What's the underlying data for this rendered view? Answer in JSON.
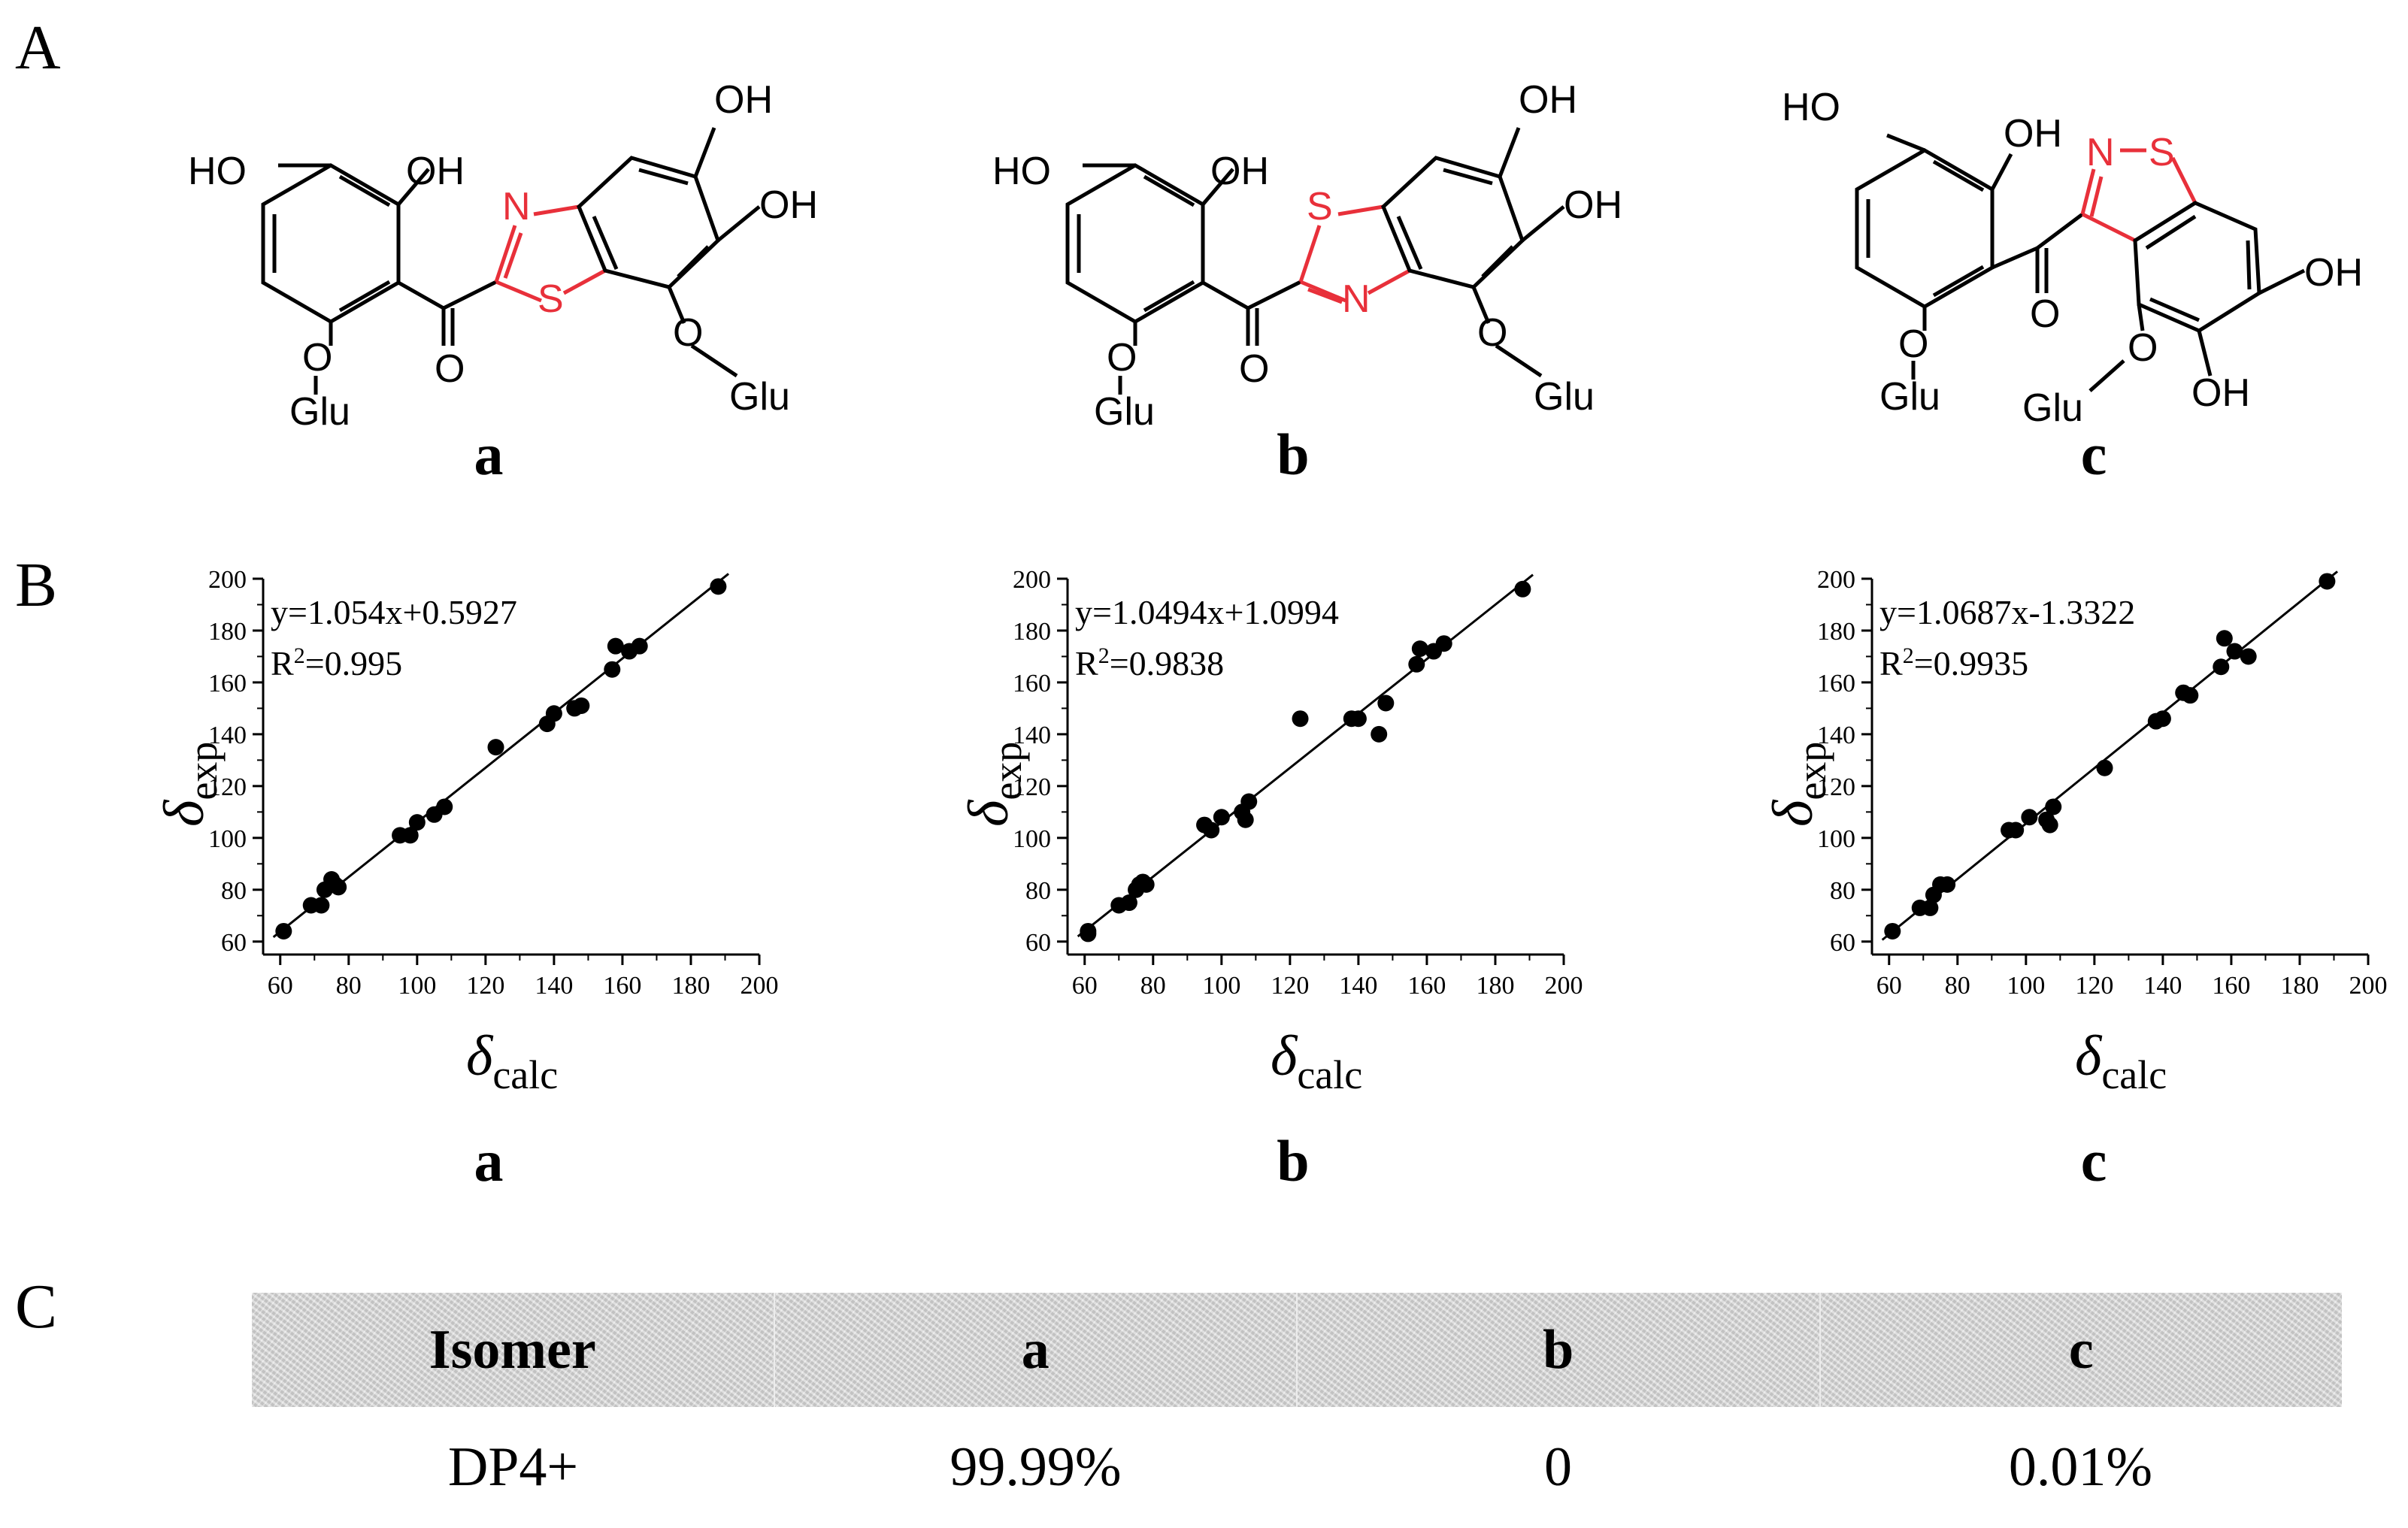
{
  "panel_labels": {
    "A": "A",
    "B": "B",
    "C": "C"
  },
  "structures": [
    {
      "label": "a",
      "atoms": {
        "HO1": "HO",
        "OH1": "OH",
        "OH2": "OH",
        "OH3": "OH",
        "N": "N",
        "S": "S",
        "O": "O",
        "O_glu1": "O",
        "Glu1": "Glu",
        "O_glu2": "O",
        "Glu2": "Glu"
      }
    },
    {
      "label": "b",
      "atoms": {
        "HO1": "HO",
        "OH1": "OH",
        "OH2": "OH",
        "OH3": "OH",
        "N": "N",
        "S": "S",
        "O": "O",
        "O_glu1": "O",
        "Glu1": "Glu",
        "O_glu2": "O",
        "Glu2": "Glu"
      }
    },
    {
      "label": "c",
      "atoms": {
        "HO1": "HO",
        "OH1": "OH",
        "OH2": "OH",
        "OH3": "OH",
        "N": "N",
        "S": "S",
        "O": "O",
        "O_glu1": "O",
        "Glu1": "Glu",
        "O_glu2": "O",
        "Glu2": "Glu"
      }
    }
  ],
  "colors": {
    "heteroatom": "#e8303a",
    "ink": "#000000"
  },
  "chart_data": [
    {
      "type": "scatter",
      "label": "a",
      "equation": "y=1.054x+0.5927",
      "r2_prefix": "R",
      "r2_sup": "2",
      "r2_value": "=0.995",
      "fit": {
        "slope": 1.054,
        "intercept": 0.5927
      },
      "xlabel": "δ",
      "xlabel_sub": "calc",
      "ylabel": "δ",
      "ylabel_sub": "exp",
      "xlim": [
        55,
        200
      ],
      "ylim": [
        55,
        200
      ],
      "xticks": [
        60,
        80,
        100,
        120,
        140,
        160,
        180,
        200
      ],
      "yticks": [
        60,
        80,
        100,
        120,
        140,
        160,
        180,
        200
      ],
      "points": [
        [
          61,
          64
        ],
        [
          69,
          74
        ],
        [
          72,
          74
        ],
        [
          73,
          80
        ],
        [
          75,
          84
        ],
        [
          76,
          82
        ],
        [
          77,
          81
        ],
        [
          95,
          101
        ],
        [
          98,
          101
        ],
        [
          100,
          106
        ],
        [
          105,
          109
        ],
        [
          108,
          112
        ],
        [
          123,
          135
        ],
        [
          138,
          144
        ],
        [
          140,
          148
        ],
        [
          146,
          150
        ],
        [
          148,
          151
        ],
        [
          157,
          165
        ],
        [
          158,
          174
        ],
        [
          162,
          172
        ],
        [
          165,
          174
        ],
        [
          188,
          197
        ]
      ]
    },
    {
      "type": "scatter",
      "label": "b",
      "equation": "y=1.0494x+1.0994",
      "r2_prefix": "R",
      "r2_sup": "2",
      "r2_value": "=0.9838",
      "fit": {
        "slope": 1.0494,
        "intercept": 1.0994
      },
      "xlabel": "δ",
      "xlabel_sub": "calc",
      "ylabel": "δ",
      "ylabel_sub": "exp",
      "xlim": [
        55,
        200
      ],
      "ylim": [
        55,
        200
      ],
      "xticks": [
        60,
        80,
        100,
        120,
        140,
        160,
        180,
        200
      ],
      "yticks": [
        60,
        80,
        100,
        120,
        140,
        160,
        180,
        200
      ],
      "points": [
        [
          61,
          63
        ],
        [
          61,
          64
        ],
        [
          70,
          74
        ],
        [
          73,
          75
        ],
        [
          75,
          80
        ],
        [
          76,
          82
        ],
        [
          77,
          83
        ],
        [
          78,
          82
        ],
        [
          95,
          105
        ],
        [
          97,
          103
        ],
        [
          100,
          108
        ],
        [
          106,
          110
        ],
        [
          107,
          107
        ],
        [
          108,
          114
        ],
        [
          123,
          146
        ],
        [
          138,
          146
        ],
        [
          140,
          146
        ],
        [
          146,
          140
        ],
        [
          148,
          152
        ],
        [
          157,
          167
        ],
        [
          158,
          173
        ],
        [
          162,
          172
        ],
        [
          165,
          175
        ],
        [
          188,
          196
        ]
      ]
    },
    {
      "type": "scatter",
      "label": "c",
      "equation": "y=1.0687x-1.3322",
      "r2_prefix": "R",
      "r2_sup": "2",
      "r2_value": "=0.9935",
      "fit": {
        "slope": 1.0687,
        "intercept": -1.3322
      },
      "xlabel": "δ",
      "xlabel_sub": "calc",
      "ylabel": "δ",
      "ylabel_sub": "exp",
      "xlim": [
        55,
        200
      ],
      "ylim": [
        55,
        200
      ],
      "xticks": [
        60,
        80,
        100,
        120,
        140,
        160,
        180,
        200
      ],
      "yticks": [
        60,
        80,
        100,
        120,
        140,
        160,
        180,
        200
      ],
      "points": [
        [
          61,
          64
        ],
        [
          69,
          73
        ],
        [
          72,
          73
        ],
        [
          73,
          78
        ],
        [
          75,
          82
        ],
        [
          77,
          82
        ],
        [
          95,
          103
        ],
        [
          97,
          103
        ],
        [
          101,
          108
        ],
        [
          106,
          107
        ],
        [
          107,
          105
        ],
        [
          108,
          112
        ],
        [
          123,
          127
        ],
        [
          138,
          145
        ],
        [
          140,
          146
        ],
        [
          146,
          156
        ],
        [
          148,
          155
        ],
        [
          157,
          166
        ],
        [
          158,
          177
        ],
        [
          161,
          172
        ],
        [
          165,
          170
        ],
        [
          188,
          199
        ]
      ]
    }
  ],
  "table": {
    "headers": [
      "Isomer",
      "a",
      "b",
      "c"
    ],
    "rows": [
      [
        "DP4+",
        "99.99%",
        "0",
        "0.01%"
      ]
    ]
  }
}
